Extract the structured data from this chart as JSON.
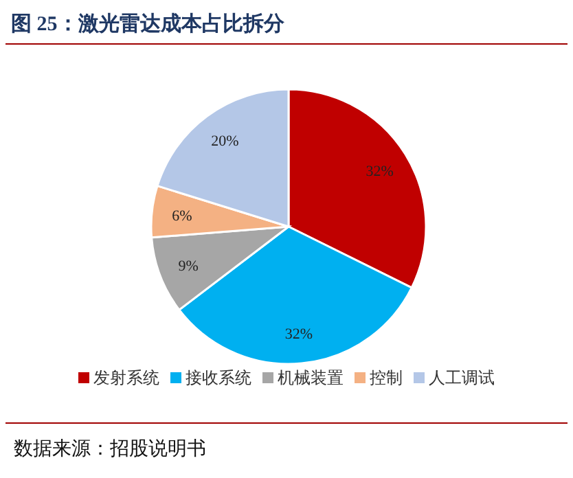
{
  "chart_data": {
    "type": "pie",
    "title": "图 25：激光雷达成本占比拆分",
    "categories": [
      "发射系统",
      "接收系统",
      "机械装置",
      "控制",
      "人工调试"
    ],
    "values": [
      32,
      32,
      9,
      6,
      20
    ],
    "colors": [
      "#c00000",
      "#00b0f0",
      "#a6a6a6",
      "#f4b183",
      "#b4c7e7"
    ],
    "value_labels": [
      "32%",
      "32%",
      "9%",
      "6%",
      "20%"
    ],
    "legend": "bottom",
    "annotations": [
      "数据来源：招股说明书"
    ]
  }
}
